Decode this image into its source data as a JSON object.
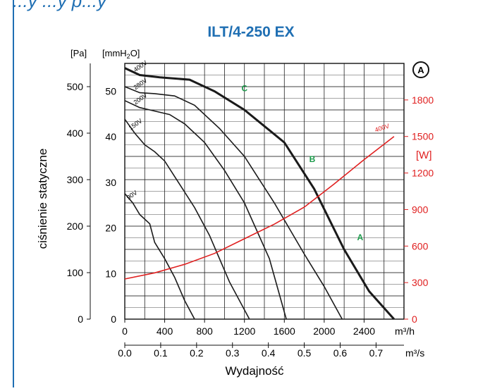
{
  "header_text": "...y ...y p...y",
  "chart_data": {
    "type": "line",
    "title": "ILT/4-250 EX",
    "ylabel": "ciśnienie statyczne",
    "xlabel": "Wydajność",
    "y_unit_pa": "[Pa]",
    "y_unit_mmh2o": "[mmH",
    "y_unit_mmh2o_sub": "2",
    "y_unit_mmh2o_end": "O]",
    "power_unit": "[W]",
    "x_unit_m3h": "m³/h",
    "x_unit_m3s": "m³/s",
    "marker_label": "A",
    "xlim_m3h": [
      0,
      2800
    ],
    "ylim_pa": [
      0,
      550
    ],
    "ylim_w": [
      0,
      2100
    ],
    "x_ticks_m3h": [
      "0",
      "400",
      "800",
      "1200",
      "1600",
      "2000",
      "2400"
    ],
    "x_ticks_m3s": [
      "0.0",
      "0.1",
      "0.2",
      "0.3",
      "0.4",
      "0.5",
      "0.6",
      "0.7"
    ],
    "y_ticks_pa": [
      "0",
      "100",
      "200",
      "300",
      "400",
      "500"
    ],
    "y_ticks_mmh2o": [
      "0",
      "10",
      "20",
      "30",
      "40",
      "50"
    ],
    "y_ticks_w": [
      "0",
      "300",
      "600",
      "900",
      "1200",
      "1500",
      "1800"
    ],
    "grid": true,
    "series": [
      {
        "name": "400V",
        "bold": true,
        "x": [
          0,
          150,
          350,
          650,
          900,
          1200,
          1600,
          1900,
          2200,
          2450,
          2700
        ],
        "y": [
          540,
          525,
          520,
          515,
          490,
          450,
          380,
          280,
          150,
          60,
          0
        ]
      },
      {
        "name": "280V",
        "bold": false,
        "x": [
          0,
          150,
          300,
          500,
          700,
          950,
          1200,
          1500,
          1800,
          2000,
          2180
        ],
        "y": [
          500,
          487,
          485,
          480,
          460,
          410,
          350,
          250,
          140,
          70,
          0
        ]
      },
      {
        "name": "200V",
        "bold": false,
        "x": [
          0,
          150,
          250,
          450,
          600,
          800,
          1000,
          1200,
          1450,
          1620
        ],
        "y": [
          470,
          455,
          450,
          440,
          420,
          380,
          320,
          250,
          130,
          0
        ]
      },
      {
        "name": "150V",
        "bold": false,
        "x": [
          0,
          100,
          200,
          300,
          400,
          550,
          700,
          850,
          1050,
          1250
        ],
        "y": [
          430,
          400,
          375,
          360,
          340,
          290,
          240,
          180,
          80,
          0
        ]
      },
      {
        "name": "90V",
        "bold": false,
        "x": [
          0,
          80,
          150,
          250,
          300,
          400,
          500,
          600,
          700
        ],
        "y": [
          270,
          250,
          225,
          205,
          165,
          130,
          90,
          40,
          0
        ]
      },
      {
        "name": "400V",
        "power": true,
        "x": [
          0,
          300,
          600,
          900,
          1200,
          1500,
          1800,
          2100,
          2400,
          2700
        ],
        "y_w": [
          330,
          380,
          450,
          540,
          660,
          780,
          920,
          1110,
          1310,
          1500
        ]
      }
    ],
    "operating_points": [
      {
        "label": "C",
        "x": 1170,
        "y": 490
      },
      {
        "label": "B",
        "x": 1850,
        "y": 338
      },
      {
        "label": "A",
        "x": 2330,
        "y": 170
      }
    ],
    "colors": {
      "curve": "#1a1a1a",
      "power": "#e02020",
      "points": "#1a9a4a",
      "title": "#1f6fb3",
      "frame": "#1f6fb3"
    }
  }
}
